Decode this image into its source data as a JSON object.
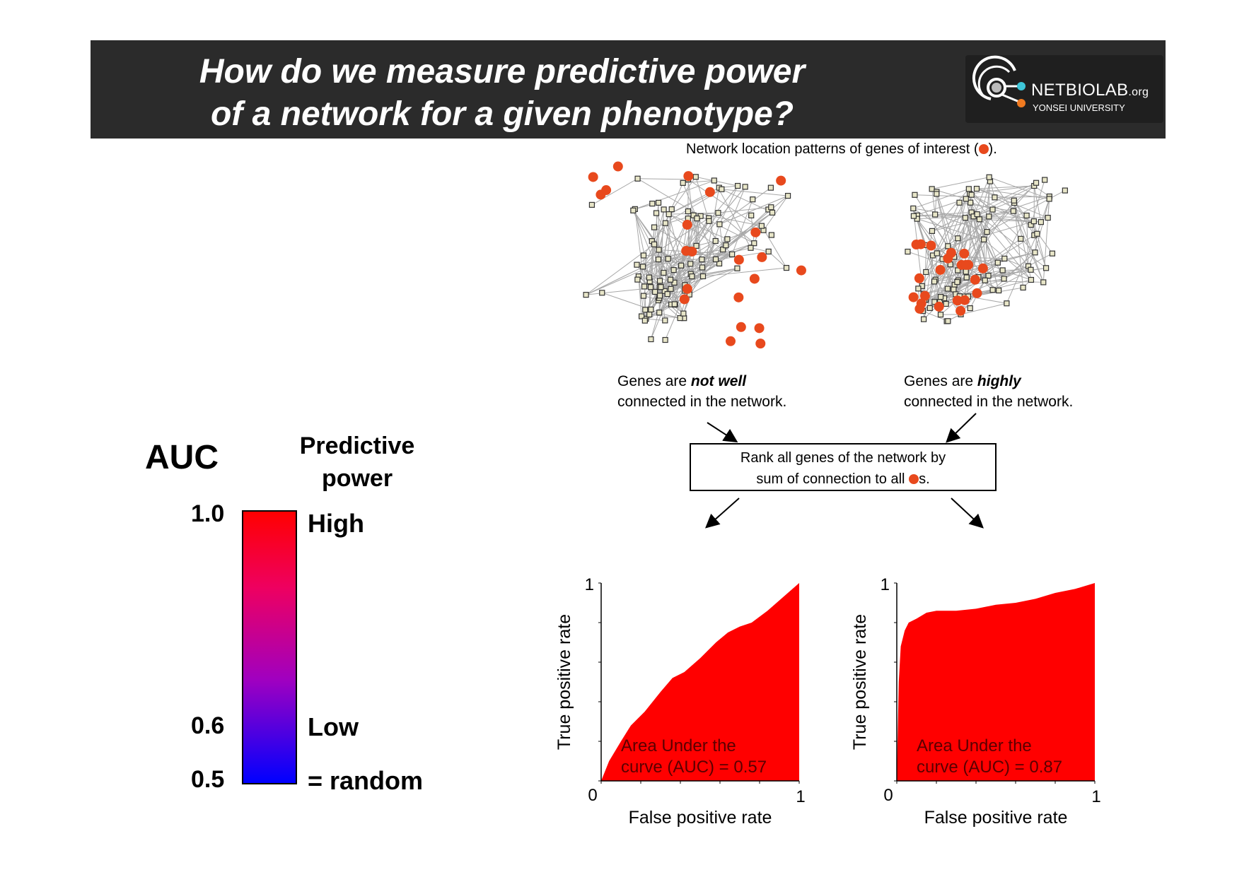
{
  "slide": {
    "title_line1": "How do we measure predictive power",
    "title_line2": "of a network for a given phenotype?"
  },
  "logo": {
    "name": "NETBIOLAB",
    "org": ".org",
    "subtitle": "YONSEI UNIVERSITY",
    "colors": {
      "cyan": "#3ec6d8",
      "orange": "#f07a20"
    }
  },
  "legend": {
    "auc_title": "AUC",
    "power_title_line1": "Predictive",
    "power_title_line2": "power",
    "value_high": "1.0",
    "value_low": "0.6",
    "value_random": "0.5",
    "label_high": "High",
    "label_low": "Low",
    "label_random": "= random",
    "colors": {
      "high": "#ff0000",
      "low": "#0000ff"
    }
  },
  "network": {
    "caption_prefix": "Network location patterns of genes of interest (",
    "caption_suffix": ").",
    "left": {
      "line1_prefix": "Genes are ",
      "line1_emphasis": "not well",
      "line2": "connected in the network."
    },
    "right": {
      "line1_prefix": "Genes are ",
      "line1_emphasis": "highly",
      "line2": "connected in the network."
    },
    "rank_line1": "Rank all genes of the network by",
    "rank_line2_prefix": "sum of connection to all ",
    "rank_line2_suffix": "s.",
    "gene_color": "#e8491d"
  },
  "chart_data": [
    {
      "type": "area",
      "xlabel": "False positive rate",
      "ylabel": "True positive rate",
      "x_ticks": [
        "0",
        "1"
      ],
      "y_ticks": [
        "1"
      ],
      "xlim": [
        0,
        1
      ],
      "ylim": [
        0,
        1
      ],
      "annotation_line1": "Area Under the",
      "annotation_line2": "curve (AUC) = 0.57",
      "auc": 0.57,
      "color": "#ff0000",
      "points": [
        [
          0,
          0
        ],
        [
          0.04,
          0.1
        ],
        [
          0.1,
          0.2
        ],
        [
          0.15,
          0.28
        ],
        [
          0.22,
          0.35
        ],
        [
          0.3,
          0.45
        ],
        [
          0.36,
          0.52
        ],
        [
          0.42,
          0.55
        ],
        [
          0.5,
          0.62
        ],
        [
          0.58,
          0.7
        ],
        [
          0.64,
          0.75
        ],
        [
          0.7,
          0.78
        ],
        [
          0.76,
          0.8
        ],
        [
          0.84,
          0.86
        ],
        [
          0.92,
          0.93
        ],
        [
          1,
          1
        ]
      ]
    },
    {
      "type": "area",
      "xlabel": "False positive rate",
      "ylabel": "True positive rate",
      "x_ticks": [
        "0",
        "1"
      ],
      "y_ticks": [
        "1"
      ],
      "xlim": [
        0,
        1
      ],
      "ylim": [
        0,
        1
      ],
      "annotation_line1": "Area Under the",
      "annotation_line2": "curve (AUC) = 0.87",
      "auc": 0.87,
      "color": "#ff0000",
      "points": [
        [
          0,
          0
        ],
        [
          0.005,
          0.25
        ],
        [
          0.01,
          0.5
        ],
        [
          0.02,
          0.68
        ],
        [
          0.04,
          0.76
        ],
        [
          0.06,
          0.8
        ],
        [
          0.1,
          0.82
        ],
        [
          0.15,
          0.85
        ],
        [
          0.2,
          0.86
        ],
        [
          0.3,
          0.86
        ],
        [
          0.4,
          0.87
        ],
        [
          0.5,
          0.89
        ],
        [
          0.6,
          0.9
        ],
        [
          0.7,
          0.92
        ],
        [
          0.8,
          0.95
        ],
        [
          0.9,
          0.97
        ],
        [
          1,
          1
        ]
      ]
    }
  ]
}
